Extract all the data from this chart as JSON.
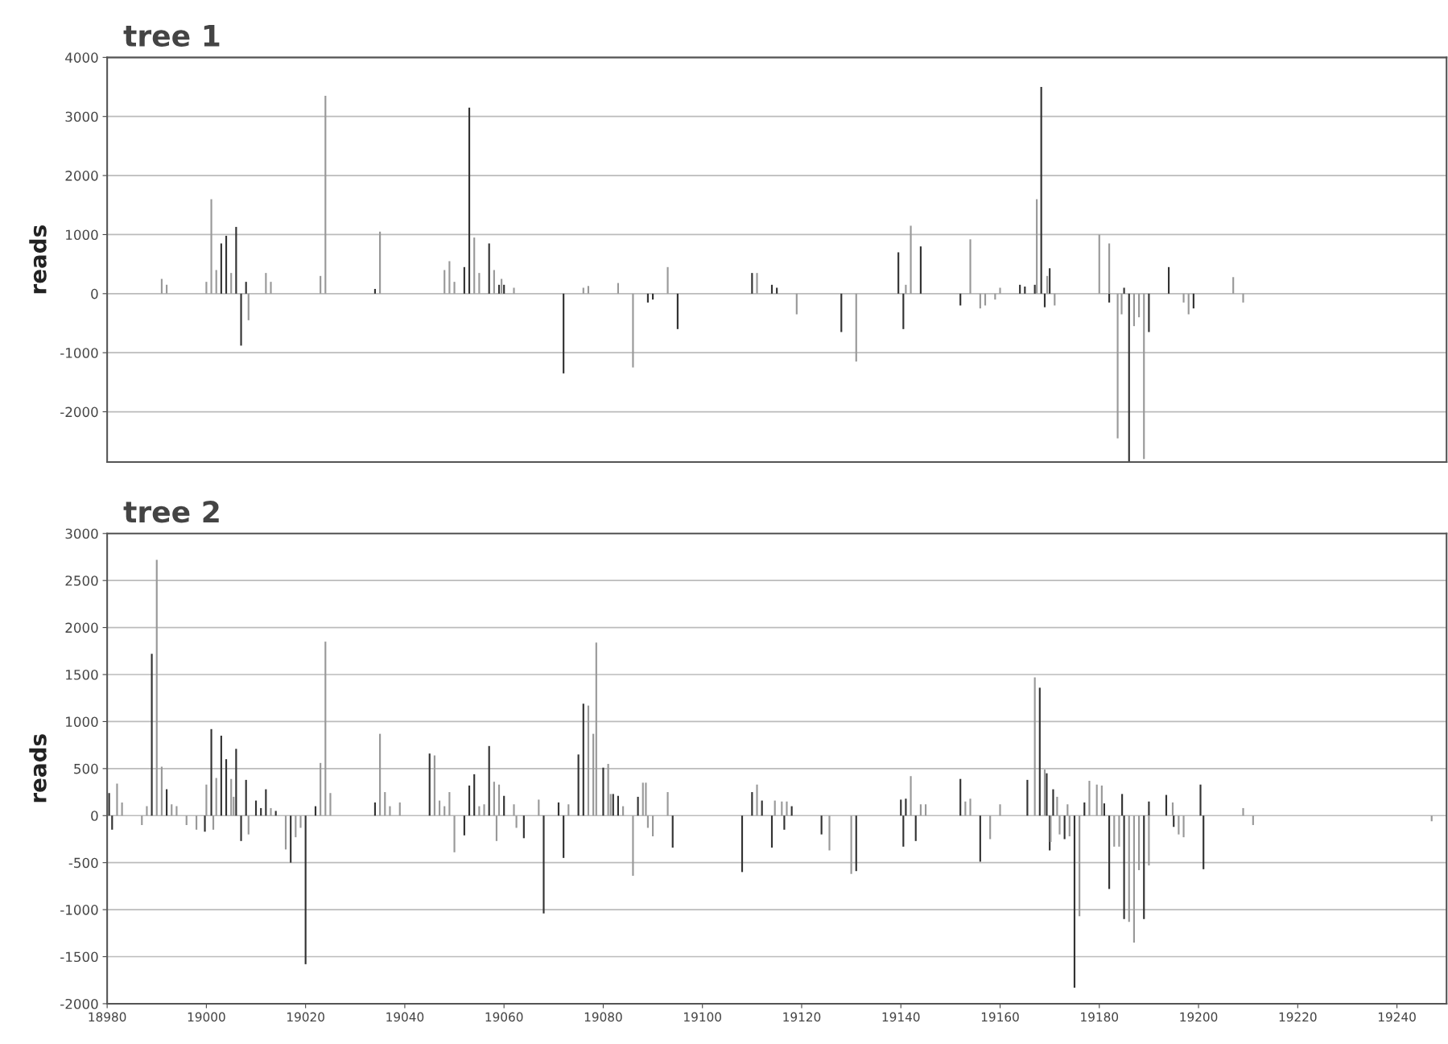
{
  "chart_data": [
    {
      "type": "bar",
      "title": "tree 1",
      "ylabel": "reads",
      "xlim": [
        18980,
        19250
      ],
      "ylim": [
        -2850,
        4000
      ],
      "yticks": [
        -2000,
        -1000,
        0,
        1000,
        2000,
        3000,
        4000
      ],
      "grid": "y",
      "tick_labels": "y",
      "legend": false,
      "series": [
        {
          "color": "#333333",
          "x": [
            19003,
            19004,
            19006,
            19007,
            19008,
            19034,
            19052,
            19053,
            19057,
            19059,
            19060,
            19072,
            19089,
            19090,
            19095,
            19110,
            19114,
            19115,
            19128,
            19139.5,
            19140.5,
            19144,
            19152,
            19164,
            19165,
            19167,
            19168.3,
            19169,
            19170,
            19182,
            19185,
            19186,
            19190,
            19194,
            19199
          ],
          "values": [
            850,
            980,
            1130,
            -880,
            200,
            80,
            450,
            3150,
            850,
            150,
            150,
            -1350,
            -150,
            -100,
            -600,
            350,
            150,
            100,
            -650,
            700,
            -600,
            800,
            -200,
            150,
            120,
            150,
            3500,
            -230,
            430,
            -150,
            100,
            -2850,
            -650,
            450,
            -250
          ]
        },
        {
          "color": "#999999",
          "x": [
            18991,
            18992,
            19000,
            19001,
            19002,
            19005,
            19008.5,
            19012,
            19013,
            19023,
            19024,
            19035,
            19048,
            19049,
            19050,
            19054,
            19055,
            19058,
            19059.5,
            19062,
            19076,
            19077,
            19083,
            19086,
            19093,
            19111,
            19119,
            19131,
            19141,
            19142,
            19154,
            19156,
            19157,
            19159,
            19160,
            19167.4,
            19169.5,
            19171,
            19180,
            19182,
            19183.7,
            19184.5,
            19187,
            19188,
            19189,
            19197,
            19198,
            19207,
            19209
          ],
          "values": [
            250,
            150,
            200,
            1600,
            400,
            350,
            -450,
            350,
            200,
            300,
            3350,
            1050,
            400,
            550,
            200,
            950,
            350,
            400,
            250,
            100,
            100,
            130,
            180,
            -1250,
            450,
            350,
            -350,
            -1150,
            150,
            1150,
            920,
            -250,
            -200,
            -100,
            100,
            1600,
            300,
            -200,
            1000,
            850,
            -2450,
            -350,
            -550,
            -400,
            -2800,
            -150,
            -350,
            280,
            -150
          ]
        }
      ]
    },
    {
      "type": "bar",
      "title": "tree 2",
      "ylabel": "reads",
      "xlim": [
        18980,
        19250
      ],
      "xticks": [
        18980,
        19000,
        19020,
        19040,
        19060,
        19080,
        19100,
        19120,
        19140,
        19160,
        19180,
        19200,
        19220,
        19240
      ],
      "ylim": [
        -2000,
        3000
      ],
      "yticks": [
        -2000,
        -1500,
        -1000,
        -500,
        0,
        500,
        1000,
        1500,
        2000,
        2500,
        3000
      ],
      "grid": "y",
      "legend": false,
      "series": [
        {
          "color": "#333333",
          "x": [
            18980.4,
            18981,
            18989,
            18992,
            18999.7,
            19001,
            19003,
            19004,
            19006,
            19007,
            19008,
            19010,
            19011,
            19012,
            19014,
            19017,
            19020,
            19022,
            19034,
            19045,
            19052,
            19053,
            19054,
            19057,
            19060,
            19064,
            19068,
            19071,
            19072,
            19075,
            19076,
            19080,
            19082,
            19083,
            19087,
            19094,
            19108,
            19110,
            19112,
            19114,
            19116.5,
            19118,
            19124,
            19131,
            19140,
            19140.5,
            19141,
            19143,
            19152,
            19156,
            19165.5,
            19168,
            19169.4,
            19170,
            19170.7,
            19173,
            19175,
            19177,
            19181,
            19182,
            19184.6,
            19185,
            19189,
            19190,
            19193.5,
            19195,
            19200.4,
            19201
          ],
          "values": [
            240,
            -150,
            1720,
            280,
            -170,
            920,
            850,
            600,
            710,
            -270,
            380,
            160,
            80,
            280,
            50,
            -500,
            -1580,
            100,
            140,
            660,
            -210,
            320,
            440,
            740,
            210,
            -240,
            -1040,
            140,
            -450,
            650,
            1190,
            510,
            230,
            210,
            200,
            -340,
            -600,
            250,
            160,
            -340,
            -150,
            100,
            -200,
            -590,
            170,
            -330,
            180,
            -270,
            390,
            -490,
            380,
            1360,
            450,
            -370,
            280,
            -250,
            -1830,
            140,
            130,
            -780,
            230,
            -1100,
            -1100,
            150,
            220,
            -120,
            330,
            -570
          ]
        },
        {
          "color": "#999999",
          "x": [
            18982,
            18983,
            18987,
            18988,
            18990,
            18991,
            18993,
            18994,
            18996,
            18998,
            19000,
            19001.4,
            19002,
            19005,
            19005.5,
            19008.5,
            19013,
            19016,
            19018,
            19019,
            19023,
            19024,
            19025,
            19035,
            19036,
            19037,
            19039,
            19046,
            19047,
            19048,
            19049,
            19050,
            19055,
            19056,
            19058,
            19058.5,
            19059,
            19062,
            19062.5,
            19067,
            19073,
            19077,
            19078,
            19078.6,
            19081,
            19081.5,
            19084,
            19086,
            19088,
            19088.6,
            19089,
            19090,
            19093,
            19111,
            19114.6,
            19116,
            19117,
            19125.6,
            19130,
            19142,
            19144,
            19145,
            19153,
            19154,
            19158,
            19160,
            19167,
            19169,
            19170.2,
            19171.5,
            19172,
            19173.6,
            19174,
            19176,
            19178,
            19179.5,
            19180.5,
            19183,
            19184,
            19186,
            19187,
            19188,
            19190,
            19194.8,
            19196,
            19197,
            19209,
            19211,
            19247
          ],
          "values": [
            340,
            140,
            -100,
            100,
            2720,
            520,
            120,
            100,
            -100,
            -150,
            330,
            -150,
            400,
            390,
            200,
            -200,
            80,
            -360,
            -230,
            -130,
            560,
            1850,
            240,
            870,
            250,
            100,
            140,
            640,
            160,
            100,
            250,
            -390,
            100,
            120,
            360,
            -270,
            330,
            120,
            -130,
            170,
            120,
            1170,
            870,
            1840,
            550,
            230,
            100,
            -640,
            350,
            350,
            -130,
            -220,
            250,
            330,
            160,
            150,
            150,
            -370,
            -620,
            420,
            120,
            120,
            150,
            180,
            -250,
            120,
            1470,
            490,
            -280,
            200,
            -200,
            120,
            -220,
            -1070,
            370,
            330,
            320,
            -330,
            -330,
            -1130,
            -1350,
            -580,
            -530,
            140,
            -200,
            -230,
            80,
            -100,
            -60
          ]
        }
      ]
    }
  ]
}
